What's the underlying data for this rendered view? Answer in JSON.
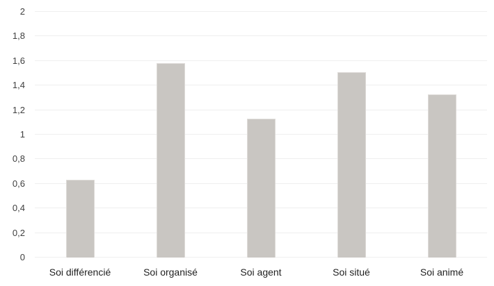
{
  "chart_data": {
    "type": "bar",
    "title": "",
    "xlabel": "",
    "ylabel": "",
    "categories": [
      "Soi différencié",
      "Soi organisé",
      "Soi agent",
      "Soi situé",
      "Soi animé"
    ],
    "values": [
      0.63,
      1.58,
      1.13,
      1.51,
      1.33
    ],
    "ylim": [
      0,
      2
    ],
    "ytick_step": 0.2,
    "ytick_labels": [
      "0",
      "0,2",
      "0,4",
      "0,6",
      "0,8",
      "1",
      "1,2",
      "1,4",
      "1,6",
      "1,8",
      "2"
    ],
    "grid": "horizontal",
    "legend_position": "none",
    "colors": {
      "bar_fill": "#c9c6c2",
      "bar_edge": "#dedbd8",
      "gridline": "#efefef",
      "ytick_text": "#3f3f3f",
      "category_text": "#1f1f1f",
      "background": "#ffffff"
    }
  }
}
